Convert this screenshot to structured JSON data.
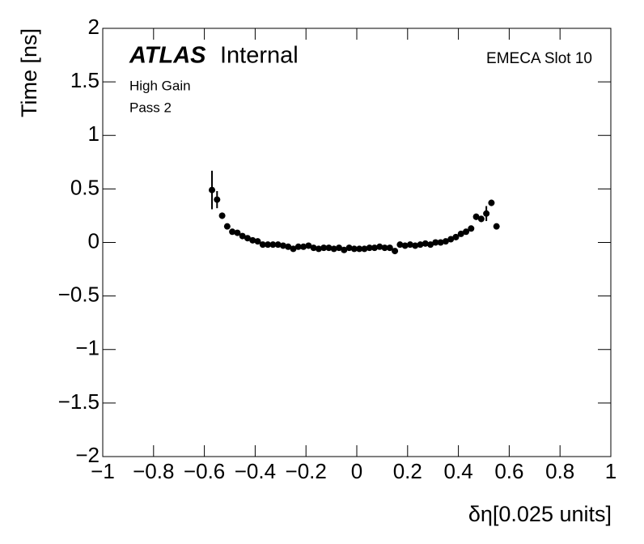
{
  "chart_data": {
    "type": "scatter",
    "xlabel": "δη[0.025 units]",
    "ylabel": "Time [ns]",
    "annotations": {
      "atlas": "ATLAS",
      "internal": "Internal",
      "slot": "EMECA Slot 10",
      "gain": "High Gain",
      "pass": "Pass 2"
    },
    "color": "#000000",
    "xlim": [
      -1,
      1
    ],
    "ylim": [
      -2,
      2
    ],
    "xticks": [
      {
        "value": -1,
        "label": "−1"
      },
      {
        "value": -0.8,
        "label": "−0.8"
      },
      {
        "value": -0.6,
        "label": "−0.6"
      },
      {
        "value": -0.4,
        "label": "−0.4"
      },
      {
        "value": -0.2,
        "label": "−0.2"
      },
      0,
      0.2,
      0.4,
      0.6,
      0.8,
      1
    ],
    "yticks": [
      {
        "value": -2,
        "label": "−2"
      },
      {
        "value": -1.5,
        "label": "−1.5"
      },
      {
        "value": -1,
        "label": "−1"
      },
      {
        "value": -0.5,
        "label": "−0.5"
      },
      0,
      0.5,
      1,
      1.5,
      2
    ],
    "x": [
      -0.57,
      -0.55,
      -0.53,
      -0.51,
      -0.49,
      -0.47,
      -0.45,
      -0.43,
      -0.41,
      -0.39,
      -0.37,
      -0.35,
      -0.33,
      -0.31,
      -0.29,
      -0.27,
      -0.25,
      -0.23,
      -0.21,
      -0.19,
      -0.17,
      -0.15,
      -0.13,
      -0.11,
      -0.09,
      -0.07,
      -0.05,
      -0.03,
      -0.01,
      0.01,
      0.03,
      0.05,
      0.07,
      0.09,
      0.11,
      0.13,
      0.15,
      0.17,
      0.19,
      0.21,
      0.23,
      0.25,
      0.27,
      0.29,
      0.31,
      0.33,
      0.35,
      0.37,
      0.39,
      0.41,
      0.43,
      0.45,
      0.47,
      0.49,
      0.51,
      0.53,
      0.55
    ],
    "values": [
      0.49,
      0.4,
      0.25,
      0.15,
      0.1,
      0.09,
      0.06,
      0.04,
      0.02,
      0.01,
      -0.02,
      -0.02,
      -0.02,
      -0.02,
      -0.03,
      -0.04,
      -0.06,
      -0.04,
      -0.04,
      -0.03,
      -0.05,
      -0.06,
      -0.05,
      -0.05,
      -0.06,
      -0.05,
      -0.07,
      -0.05,
      -0.06,
      -0.06,
      -0.06,
      -0.05,
      -0.05,
      -0.04,
      -0.05,
      -0.05,
      -0.08,
      -0.02,
      -0.03,
      -0.02,
      -0.03,
      -0.02,
      -0.01,
      -0.02,
      0.0,
      0.0,
      0.01,
      0.03,
      0.05,
      0.08,
      0.1,
      0.13,
      0.24,
      0.22,
      0.27,
      0.37,
      0.15
    ],
    "errors": [
      0.18,
      0.08,
      0.03,
      0.02,
      0.02,
      0.01,
      0.01,
      0.01,
      0.01,
      0.01,
      0.01,
      0.01,
      0.01,
      0.01,
      0.01,
      0.01,
      0.01,
      0.01,
      0.01,
      0.01,
      0.01,
      0.01,
      0.01,
      0.01,
      0.01,
      0.01,
      0.01,
      0.01,
      0.01,
      0.01,
      0.01,
      0.01,
      0.01,
      0.01,
      0.01,
      0.01,
      0.01,
      0.01,
      0.01,
      0.01,
      0.01,
      0.01,
      0.01,
      0.01,
      0.01,
      0.01,
      0.01,
      0.01,
      0.01,
      0.01,
      0.02,
      0.02,
      0.03,
      0.03,
      0.07,
      0.03,
      0.02
    ]
  }
}
